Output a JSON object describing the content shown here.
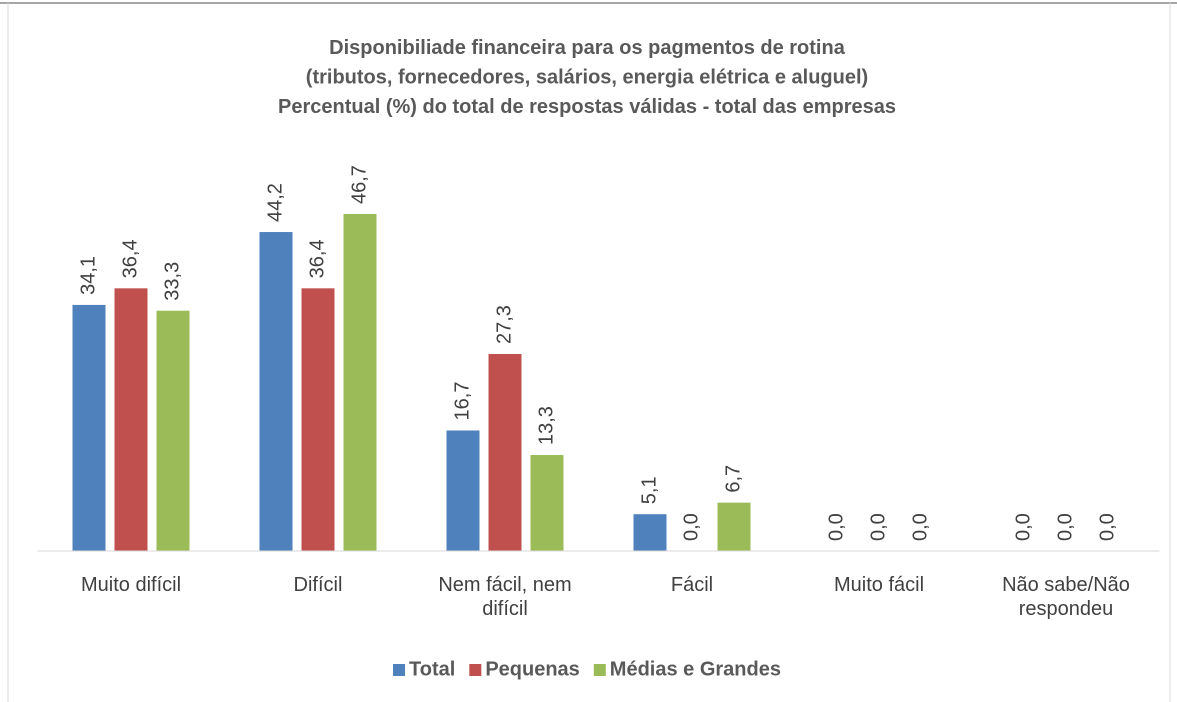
{
  "chart_data": {
    "type": "bar",
    "title": [
      "Disponibiliade financeira para os pagmentos de rotina",
      "(tributos, fornecedores, salários, energia elétrica e aluguel)",
      "Percentual (%) do total de respostas válidas - total das empresas"
    ],
    "categories": [
      "Muito difícil",
      "Difícil",
      "Nem fácil, nem difícil",
      "Fácil",
      "Muito fácil",
      "Não sabe/Não respondeu"
    ],
    "series": [
      {
        "name": "Total",
        "color": "#4f81bd",
        "values": [
          34.1,
          44.2,
          16.7,
          5.1,
          0,
          0
        ],
        "value_labels": [
          "34,1",
          "44,2",
          "16,7",
          "5,1",
          "0,0",
          "0,0"
        ]
      },
      {
        "name": "Pequenas",
        "color": "#c0504d",
        "values": [
          36.4,
          36.4,
          27.3,
          0,
          0,
          0
        ],
        "value_labels": [
          "36,4",
          "36,4",
          "27,3",
          "0,0",
          "0,0",
          "0,0"
        ]
      },
      {
        "name": "Médias e Grandes",
        "color": "#9bbb59",
        "values": [
          33.3,
          46.7,
          13.3,
          6.7,
          0,
          0
        ],
        "value_labels": [
          "33,3",
          "46,7",
          "13,3",
          "6,7",
          "0,0",
          "0,0"
        ]
      }
    ],
    "legend": "bottom"
  }
}
